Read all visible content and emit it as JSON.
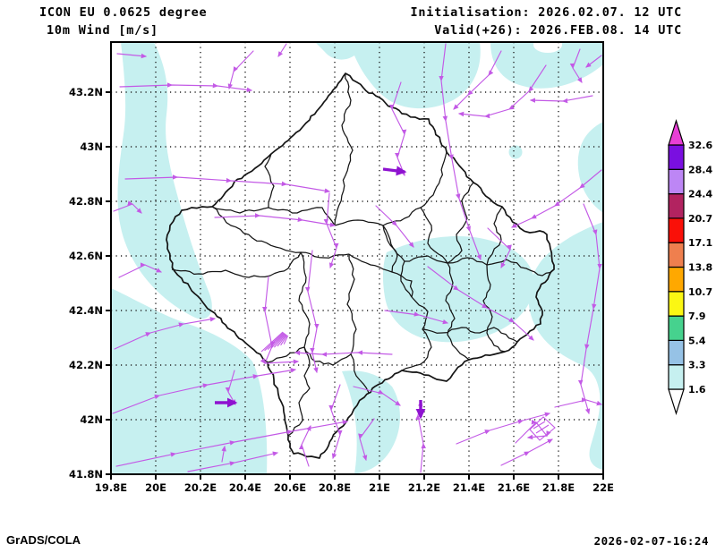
{
  "header": {
    "line1": "ICON EU 0.0625 degree",
    "line2": "10m Wind [m/s]",
    "init_label": "Initialisation: 2026.02.07. 12 UTC",
    "valid_label": "Valid(+26): 2026.FEB.08. 14 UTC"
  },
  "footer": {
    "credit": "GrADS/COLA",
    "timestamp": "2026-02-07-16:24"
  },
  "chart_data": {
    "type": "map",
    "model": "ICON EU 0.0625 degree",
    "field_title": "10m Wind [m/s]",
    "x_ticks": [
      "19.8E",
      "20E",
      "20.2E",
      "20.4E",
      "20.6E",
      "20.8E",
      "21E",
      "21.2E",
      "21.4E",
      "21.6E",
      "21.8E",
      "22E"
    ],
    "y_ticks": [
      "41.8N",
      "42N",
      "42.2N",
      "42.4N",
      "42.6N",
      "42.8N",
      "43N",
      "43.2N"
    ],
    "x_range": [
      19.8,
      22.0
    ],
    "y_range_labeled": [
      41.8,
      43.2
    ],
    "grid": "dotted",
    "colorbar": {
      "labels": [
        "1.6",
        "3.3",
        "5.4",
        "7.9",
        "10.7",
        "13.8",
        "17.1",
        "20.7",
        "24.4",
        "28.4",
        "32.6"
      ],
      "below_color": "#ffffff",
      "segment_colors": [
        "#c6f0f0",
        "#96c2e6",
        "#46d28e",
        "#fbf713",
        "#ffa800",
        "#ef7f4e",
        "#fa1008",
        "#b22360",
        "#bd86f5",
        "#7a0fe0"
      ],
      "above_color": "#e83fd5"
    },
    "shade_fill": "#c6f0f0",
    "vector_color": "#c35ae6",
    "bold_vector_color": "#8e12d0",
    "boundary_color": "#151515",
    "frame_color": "#000000"
  }
}
